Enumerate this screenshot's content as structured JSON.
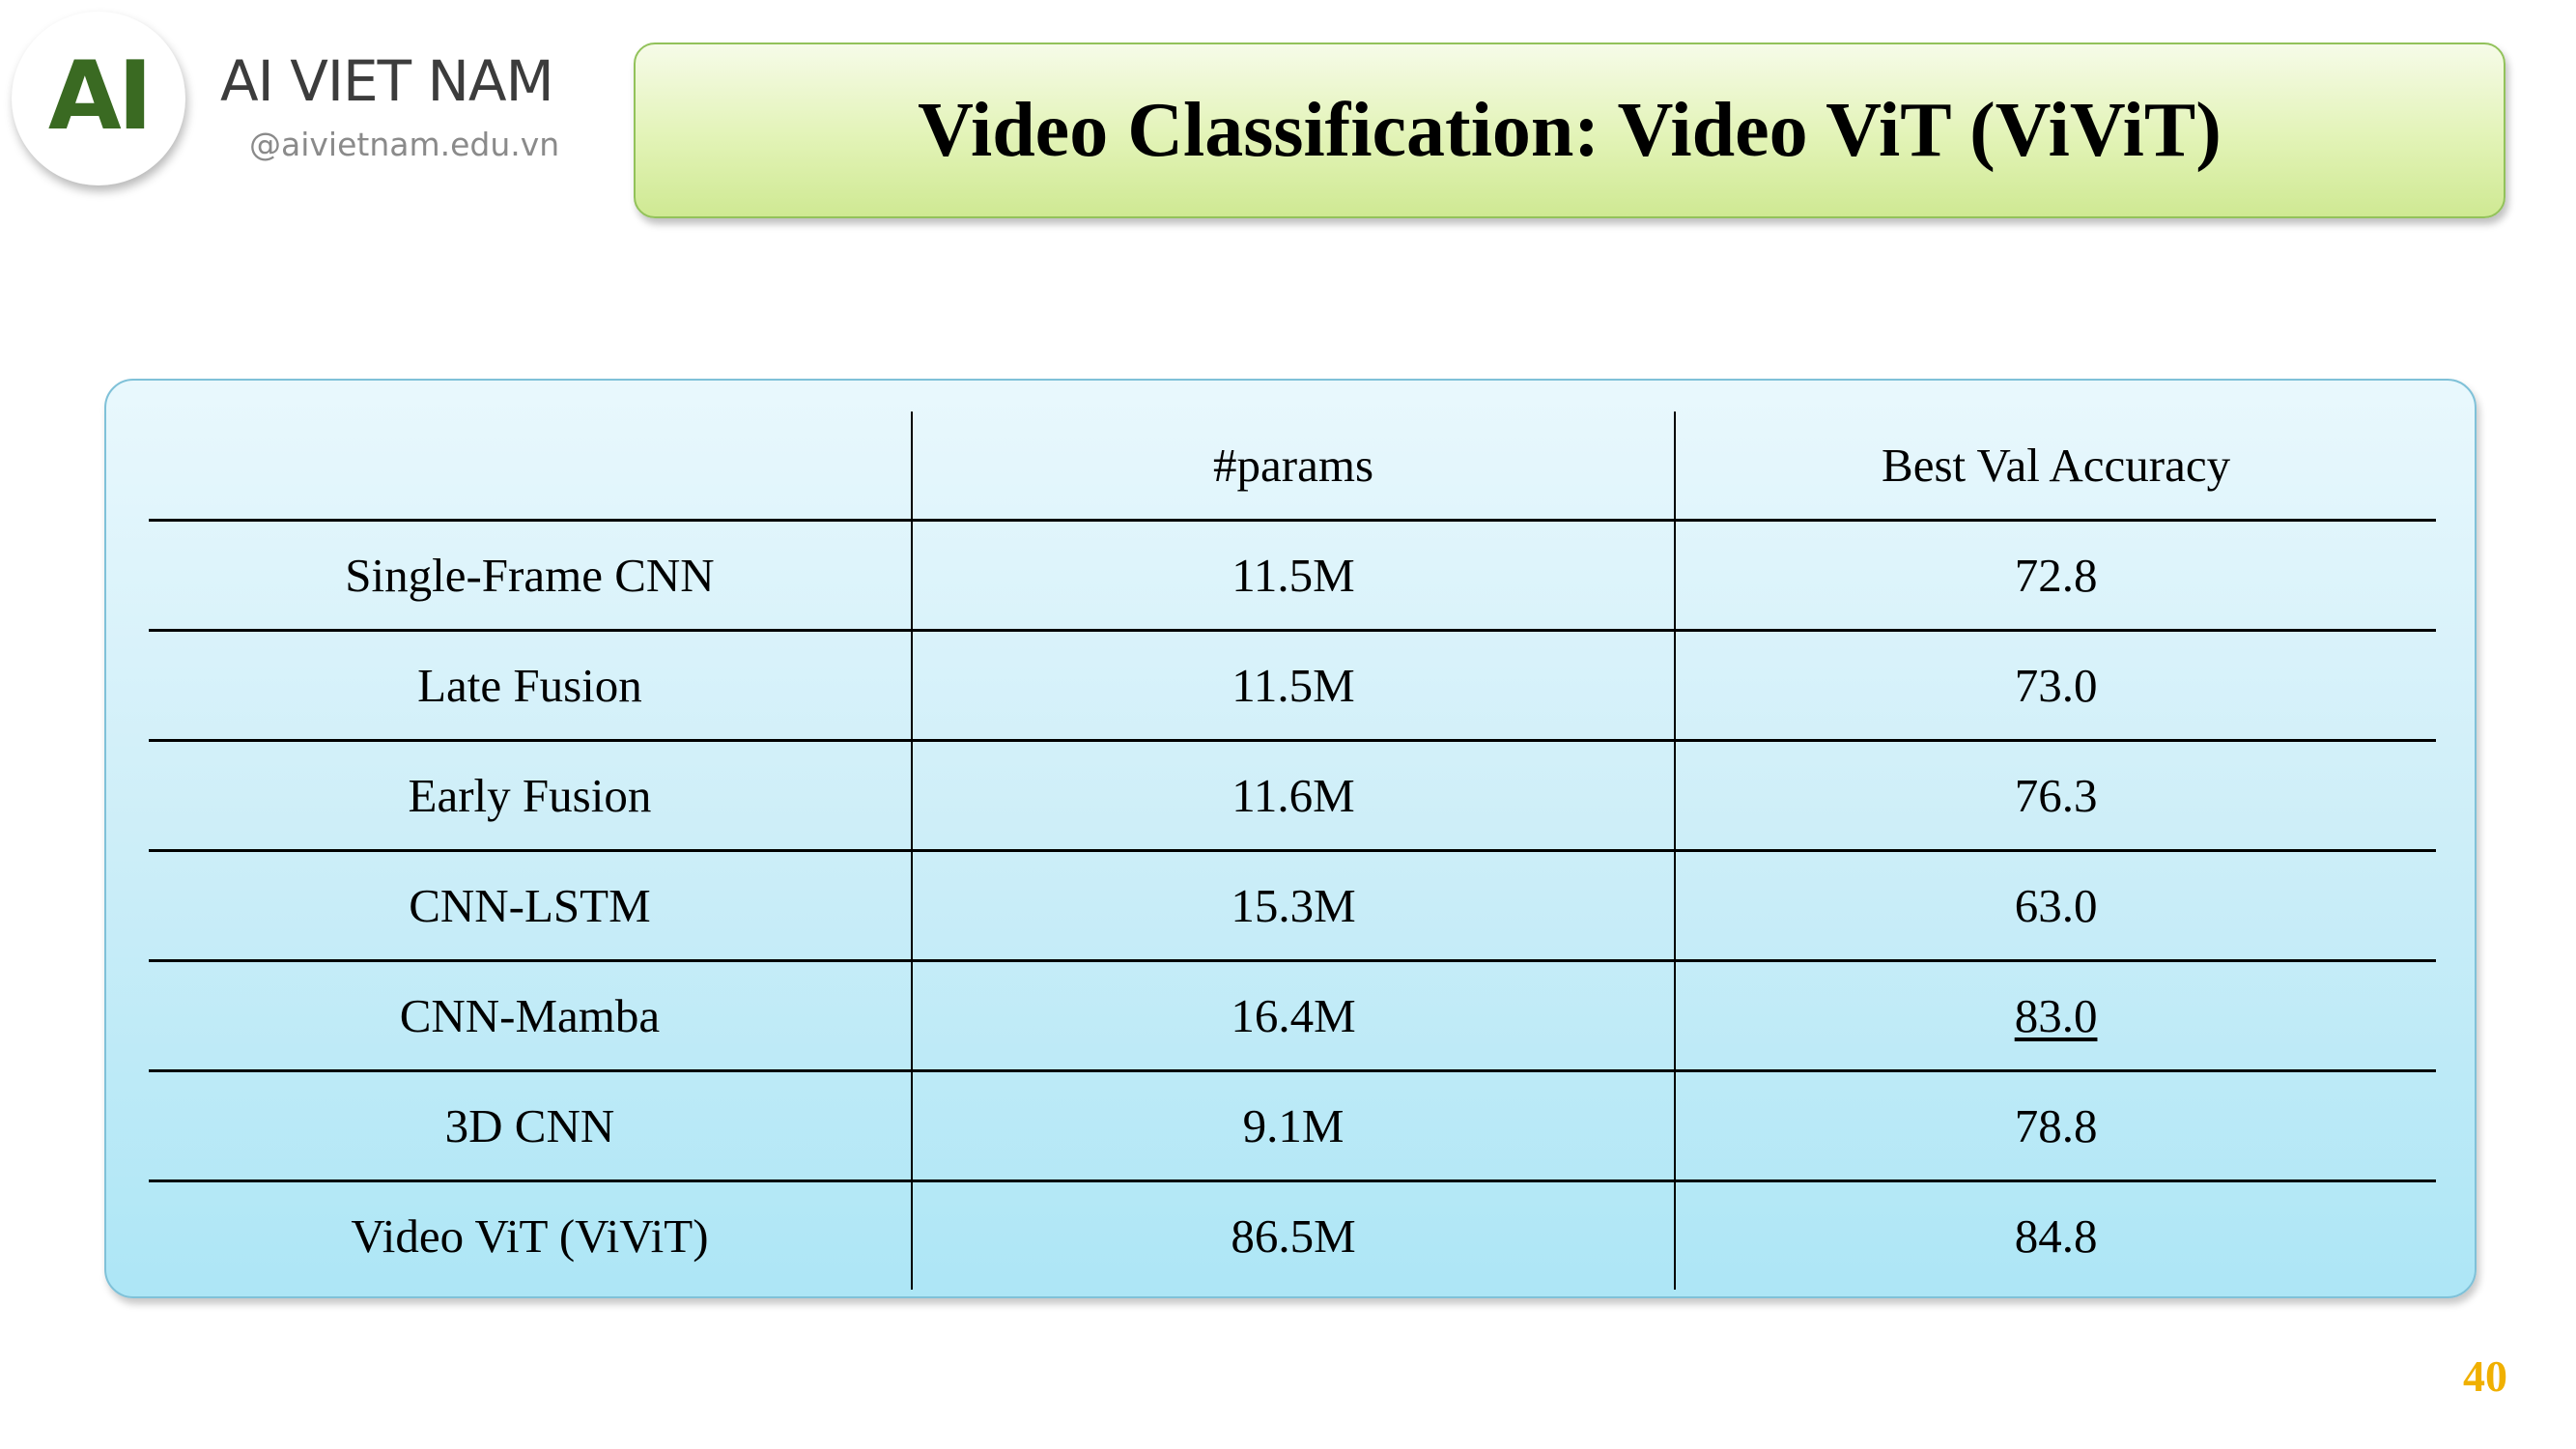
{
  "brand": {
    "logo_text": "AI",
    "name": "AI VIET NAM",
    "url": "@aivietnam.edu.vn",
    "logo_color": "#3a6a22"
  },
  "title": "Video Classification: Video ViT (ViViT)",
  "table": {
    "headers": [
      "",
      "#params",
      "Best Val Accuracy"
    ],
    "rows": [
      {
        "model": "Single-Frame CNN",
        "params": "11.5M",
        "accuracy": "72.8"
      },
      {
        "model": "Late Fusion",
        "params": "11.5M",
        "accuracy": "73.0"
      },
      {
        "model": "Early Fusion",
        "params": "11.6M",
        "accuracy": "76.3"
      },
      {
        "model": "CNN-LSTM",
        "params": "15.3M",
        "accuracy": "63.0"
      },
      {
        "model": "CNN-Mamba",
        "params": "16.4M",
        "accuracy": "83.0",
        "style": "underline"
      },
      {
        "model": "3D CNN",
        "params": "9.1M",
        "accuracy": "78.8"
      },
      {
        "model": "Video ViT (ViViT)",
        "params": "86.5M",
        "accuracy": "84.8",
        "style": "bold"
      }
    ]
  },
  "page_number": "40",
  "colors": {
    "title_gradient_top": "#f6fbe8",
    "title_gradient_bottom": "#cfe993",
    "table_gradient_top": "#e9f8fd",
    "table_gradient_bottom": "#ade6f6",
    "page_number": "#f0b000"
  }
}
